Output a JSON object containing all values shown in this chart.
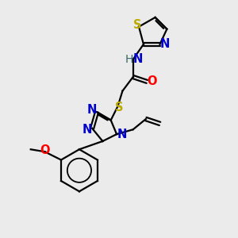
{
  "bg_color": "#ebebeb",
  "atom_colors": {
    "C": "#000000",
    "N": "#0000cc",
    "O": "#ff0000",
    "S": "#bbaa00",
    "H": "#336666"
  },
  "bond_color": "#000000",
  "figsize": [
    3.0,
    3.0
  ],
  "dpi": 100,
  "lw": 1.6,
  "fs": 10.5
}
